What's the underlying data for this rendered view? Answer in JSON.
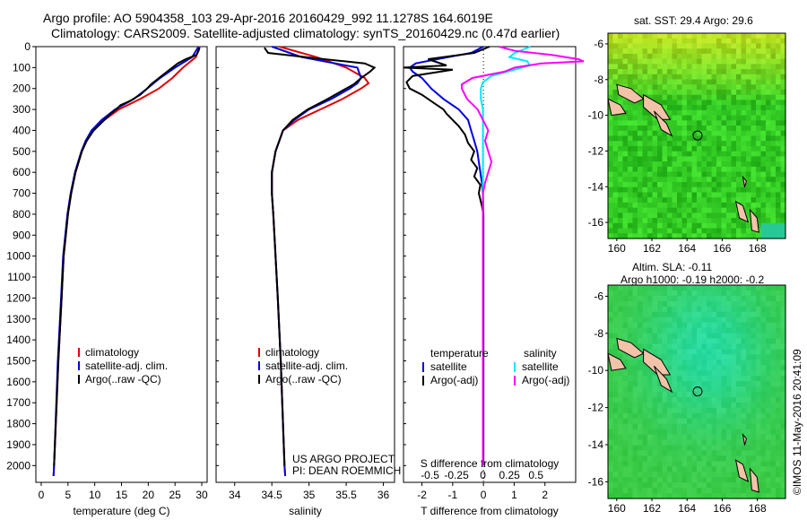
{
  "header": {
    "line1": "Argo profile: AO 5904358_103 29-Apr-2016 20160429_992 11.1278S 164.6019E",
    "line2": "Climatology: CARS2009. Satellite-adjusted climatology: synTS_20160429.nc (0.47d earlier)"
  },
  "chart_data": [
    {
      "type": "line",
      "panel": "temperature",
      "xlabel": "temperature (deg C)",
      "xlim": [
        -1,
        31
      ],
      "ylim": [
        0,
        2080
      ],
      "x_ticks": [
        0,
        5,
        10,
        15,
        20,
        25,
        30
      ],
      "y_ticks": [
        0,
        100,
        200,
        300,
        400,
        500,
        600,
        700,
        800,
        900,
        1000,
        1100,
        1200,
        1300,
        1400,
        1500,
        1600,
        1700,
        1800,
        1900,
        2000
      ],
      "legend_position": "lower-center",
      "legend": [
        "climatology",
        "satellite-adj. clim.",
        "Argo(..raw -QC)"
      ],
      "colors": [
        "#e00000",
        "#0000e0",
        "#000000"
      ],
      "series": [
        {
          "name": "climatology",
          "depth": [
            0,
            50,
            100,
            150,
            200,
            250,
            300,
            350,
            400,
            450,
            500,
            600,
            700,
            800,
            1000,
            1200,
            1500,
            2000,
            2050
          ],
          "values": [
            29.6,
            28.9,
            26.5,
            24.5,
            22.0,
            18.5,
            14.5,
            11.8,
            9.6,
            8.4,
            7.6,
            6.4,
            5.6,
            5.0,
            4.2,
            3.8,
            3.2,
            2.4,
            2.3
          ]
        },
        {
          "name": "satellite-adj. clim.",
          "depth": [
            0,
            50,
            100,
            150,
            200,
            250,
            300,
            350,
            400,
            450,
            500,
            600,
            700,
            800,
            1000,
            1200,
            1500,
            2000,
            2050
          ],
          "values": [
            29.4,
            28.2,
            25.0,
            22.2,
            19.8,
            17.3,
            13.8,
            11.3,
            9.4,
            8.3,
            7.5,
            6.3,
            5.5,
            4.9,
            4.1,
            3.7,
            3.1,
            2.4,
            2.3
          ]
        },
        {
          "name": "Argo(..raw -QC)",
          "depth": [
            5,
            20,
            40,
            60,
            80,
            100,
            120,
            150,
            180,
            200,
            230,
            260,
            280,
            300,
            320,
            350,
            400,
            450,
            500,
            600,
            700,
            800,
            1000,
            1200,
            1500,
            2000
          ],
          "values": [
            29.6,
            29.4,
            29.0,
            27.0,
            25.5,
            24.5,
            23.5,
            22.0,
            20.5,
            19.8,
            18.5,
            16.5,
            14.8,
            14.0,
            13.0,
            11.8,
            9.8,
            8.5,
            7.6,
            6.4,
            5.6,
            5.0,
            4.2,
            3.8,
            3.2,
            2.4
          ]
        }
      ]
    },
    {
      "type": "line",
      "panel": "salinity",
      "xlabel": "salinity",
      "xlim": [
        33.75,
        36.15
      ],
      "ylim": [
        0,
        2080
      ],
      "x_ticks": [
        34,
        34.5,
        35,
        35.5,
        36
      ],
      "legend_position": "lower-center",
      "legend": [
        "climatology",
        "satellite-adj. clim.",
        "Argo(..raw -QC)"
      ],
      "colors": [
        "#e00000",
        "#0000e0",
        "#000000"
      ],
      "series": [
        {
          "name": "climatology",
          "depth": [
            0,
            50,
            100,
            150,
            175,
            200,
            250,
            300,
            350,
            400,
            500,
            600,
            700,
            800,
            1000,
            1200,
            1500,
            2000,
            2050
          ],
          "values": [
            34.6,
            35.1,
            35.5,
            35.75,
            35.8,
            35.7,
            35.45,
            35.15,
            34.85,
            34.65,
            34.55,
            34.5,
            34.5,
            34.52,
            34.55,
            34.58,
            34.62,
            34.67,
            34.68
          ]
        },
        {
          "name": "satellite-adj. clim.",
          "depth": [
            0,
            50,
            100,
            150,
            175,
            200,
            250,
            300,
            350,
            400,
            500,
            600,
            700,
            800,
            1000,
            1200,
            1500,
            2000,
            2050
          ],
          "values": [
            34.5,
            34.9,
            35.65,
            35.7,
            35.65,
            35.55,
            35.3,
            35.0,
            34.8,
            34.65,
            34.55,
            34.5,
            34.5,
            34.52,
            34.55,
            34.58,
            34.62,
            34.67,
            34.68
          ]
        },
        {
          "name": "Argo(..raw -QC)",
          "depth": [
            5,
            30,
            60,
            80,
            100,
            120,
            150,
            180,
            200,
            250,
            300,
            350,
            400,
            500,
            600,
            700,
            800,
            1000,
            1200,
            1500,
            2000
          ],
          "values": [
            34.4,
            34.45,
            35.2,
            35.75,
            35.88,
            35.82,
            35.7,
            35.6,
            35.5,
            35.25,
            34.98,
            34.78,
            34.65,
            34.55,
            34.5,
            34.5,
            34.52,
            34.55,
            34.58,
            34.62,
            34.67
          ]
        }
      ]
    },
    {
      "type": "line",
      "panel": "differences",
      "xlabel": "T difference from climatology",
      "xlabel2": "S difference from climatology",
      "xlim": [
        -2.6,
        3.0
      ],
      "s_xlim": [
        -0.75,
        0.875
      ],
      "ylim": [
        0,
        2080
      ],
      "x_ticks": [
        -2,
        -1,
        0,
        1,
        2
      ],
      "s_ticks": [
        -0.5,
        -0.25,
        0,
        0.25,
        0.5
      ],
      "legend_position": "lower-center",
      "legend_temperature_header": "temperature",
      "legend_salinity_header": "salinity",
      "legend": [
        "satellite",
        "Argo(-adj)",
        "satellite",
        "Argo(-adj)"
      ],
      "colors": [
        "#0000e0",
        "#000000",
        "#00e8ff",
        "#ff00ff"
      ],
      "series": [
        {
          "name": "satellite",
          "depth": [
            0,
            30,
            60,
            80,
            100,
            120,
            150,
            200,
            250,
            300,
            350,
            400,
            450,
            500,
            550,
            600,
            650,
            700,
            800,
            1000,
            2000
          ],
          "values": [
            0,
            -0.4,
            -1.5,
            -2.2,
            -2.4,
            -2.3,
            -2.0,
            -1.7,
            -1.3,
            -0.8,
            -0.5,
            -0.4,
            -0.3,
            -0.2,
            -0.15,
            -0.1,
            -0.05,
            -0.02,
            0,
            0,
            0
          ]
        },
        {
          "name": "Argo(-adj)",
          "depth": [
            0,
            30,
            60,
            90,
            100,
            110,
            140,
            170,
            200,
            230,
            260,
            280,
            300,
            320,
            350,
            380,
            420,
            460,
            500,
            540,
            580,
            620,
            660,
            700,
            760,
            800,
            1000,
            1200,
            1500,
            2000
          ],
          "values": [
            0.2,
            -0.3,
            -1.8,
            -1.2,
            -2.6,
            -1.0,
            -2.3,
            -2.5,
            -2.4,
            -2.0,
            -1.7,
            -1.5,
            -1.3,
            -1.2,
            -1.0,
            -0.8,
            -0.6,
            -0.5,
            -0.3,
            -0.4,
            -0.2,
            -0.3,
            -0.1,
            -0.15,
            -0.05,
            0,
            0,
            0,
            0,
            0
          ]
        },
        {
          "name": "satellite",
          "depth": [
            0,
            30,
            50,
            70,
            90,
            110,
            140,
            170,
            200,
            250,
            300,
            400,
            500,
            600,
            700,
            800,
            1000,
            2000
          ],
          "values": [
            0.45,
            0.3,
            0.25,
            0.42,
            0.44,
            0.3,
            0.08,
            0.0,
            -0.02,
            -0.02,
            0,
            0,
            0,
            0,
            0,
            0,
            0,
            0
          ]
        },
        {
          "name": "Argo(-adj)",
          "depth": [
            0,
            20,
            40,
            60,
            70,
            80,
            100,
            120,
            150,
            180,
            200,
            250,
            300,
            350,
            400,
            450,
            500,
            550,
            600,
            650,
            700,
            800,
            1000,
            2000
          ],
          "values": [
            0.15,
            0.3,
            0.65,
            0.9,
            0.95,
            0.55,
            0.3,
            0.2,
            -0.1,
            -0.2,
            -0.2,
            -0.15,
            -0.05,
            0,
            0.05,
            0.02,
            0.05,
            0.08,
            0.05,
            0.02,
            0,
            0,
            0,
            0
          ]
        }
      ]
    },
    {
      "type": "heatmap",
      "panel": "sst-map",
      "title": "sat. SST: 29.4  Argo: 29.6",
      "x_ticks": [
        160,
        162,
        164,
        166,
        168
      ],
      "y_ticks": [
        -6,
        -8,
        -10,
        -12,
        -14,
        -16
      ],
      "xlim": [
        159.5,
        169.6
      ],
      "ylim": [
        -16.9,
        -5.4
      ],
      "marker": {
        "lon": 164.6,
        "lat": -11.13
      }
    },
    {
      "type": "heatmap",
      "panel": "sla-map",
      "title": "Altim. SLA: -0.11",
      "subtitle": "Argo h1000: -0.19  h2000: -0.2",
      "x_ticks": [
        160,
        162,
        164,
        166,
        168
      ],
      "y_ticks": [
        -6,
        -8,
        -10,
        -12,
        -14,
        -16
      ],
      "xlim": [
        159.5,
        169.6
      ],
      "ylim": [
        -16.9,
        -5.4
      ],
      "marker": {
        "lon": 164.6,
        "lat": -11.13
      }
    }
  ],
  "annotations": {
    "project": "US ARGO PROJECT",
    "pi": "PI: DEAN ROEMMICH",
    "imos_stamp": "©IMOS 11-May-2016 20:41:09"
  }
}
